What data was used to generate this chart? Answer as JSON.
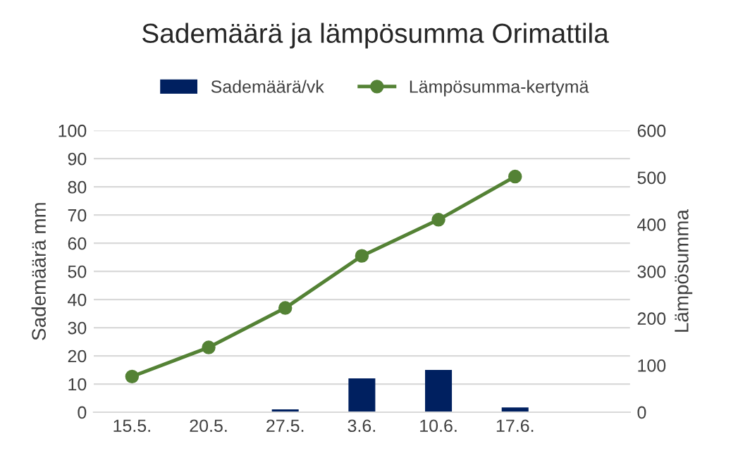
{
  "chart_data": {
    "type": "bar",
    "title": "Sademäärä ja lämpösumma Orimattila",
    "categories": [
      "15.5.",
      "20.5.",
      "27.5.",
      "3.6.",
      "10.6.",
      "17.6.",
      null
    ],
    "series": [
      {
        "name": "Sademäärä/vk",
        "color": "#002060",
        "values": [
          0,
          0,
          1,
          12,
          15,
          1.7,
          null
        ]
      },
      {
        "name": "Lämpösumma-kertymä",
        "type": "line",
        "axis": "y2",
        "color": "#548235",
        "marker": "circle",
        "values": [
          76,
          138,
          222,
          333,
          410,
          502,
          null
        ]
      }
    ],
    "ylabel": "Sademäärä mm",
    "y2label": "Lämpösumma",
    "ylim": [
      0,
      100
    ],
    "yticks": [
      0,
      10,
      20,
      30,
      40,
      50,
      60,
      70,
      80,
      90,
      100
    ],
    "y2lim": [
      0,
      600
    ],
    "y2ticks": [
      0,
      100,
      200,
      300,
      400,
      500,
      600
    ],
    "grid": "y",
    "legend": "top"
  }
}
